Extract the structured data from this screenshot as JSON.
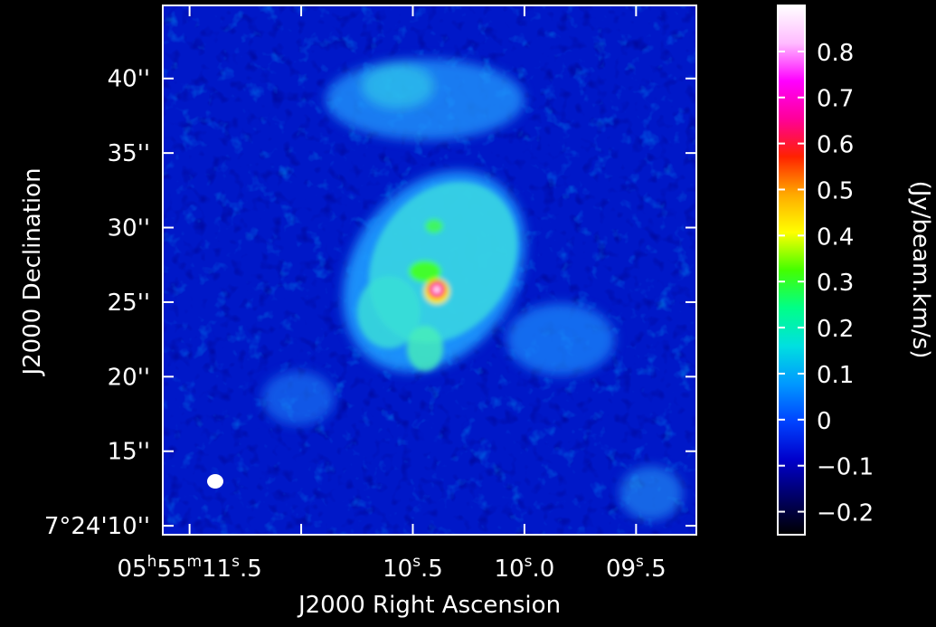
{
  "chart_data": {
    "type": "heatmap",
    "title": "",
    "xlabel": "J2000 Right Ascension",
    "ylabel": "J2000 Declination",
    "colorbar_label": "(Jy/beam.km/s)",
    "x_ticks": [
      {
        "label_parts": [
          "05",
          "h",
          "55",
          "m",
          "11",
          "s",
          ".5"
        ],
        "ra_sec": 11.5
      },
      {
        "label_parts": [
          "10",
          "s",
          ".5"
        ],
        "ra_sec": 10.5
      },
      {
        "label_parts": [
          "10",
          "s",
          ".0"
        ],
        "ra_sec": 10.0
      },
      {
        "label_parts": [
          "09",
          "s",
          ".5"
        ],
        "ra_sec": 9.5
      }
    ],
    "x_minor_ticks_ra_sec": [
      11.0
    ],
    "y_ticks": [
      {
        "label": "7°24'10''",
        "dec_arcsec": 10
      },
      {
        "label": "15''",
        "dec_arcsec": 15
      },
      {
        "label": "20''",
        "dec_arcsec": 20
      },
      {
        "label": "25''",
        "dec_arcsec": 25
      },
      {
        "label": "30''",
        "dec_arcsec": 30
      },
      {
        "label": "35''",
        "dec_arcsec": 35
      },
      {
        "label": "40''",
        "dec_arcsec": 40
      }
    ],
    "xlim_ra_sec": [
      11.62,
      9.23
    ],
    "ylim_dec_arcsec": [
      9.4,
      44.9
    ],
    "colorbar_ticks": [
      "−0.2",
      "−0.1",
      "0",
      "0.1",
      "0.2",
      "0.3",
      "0.4",
      "0.5",
      "0.6",
      "0.7",
      "0.8"
    ],
    "colorbar_tick_values": [
      -0.2,
      -0.1,
      0,
      0.1,
      0.2,
      0.3,
      0.4,
      0.5,
      0.6,
      0.7,
      0.8
    ],
    "color_range": [
      -0.25,
      0.9
    ],
    "colormap": [
      "#000000",
      "#000066",
      "#0000cc",
      "#0044ff",
      "#0099ff",
      "#00e0e0",
      "#00ff88",
      "#44ff00",
      "#ffff00",
      "#ffaa00",
      "#ff2200",
      "#ff0099",
      "#ff00ff",
      "#ffbbff",
      "#ffffff"
    ],
    "features": [
      {
        "name": "peak",
        "ra_sec": 10.36,
        "dec_arcsec": 25.5,
        "value": 0.9
      },
      {
        "name": "beam",
        "ra_sec": 11.28,
        "dec_arcsec": 12.3
      }
    ]
  }
}
